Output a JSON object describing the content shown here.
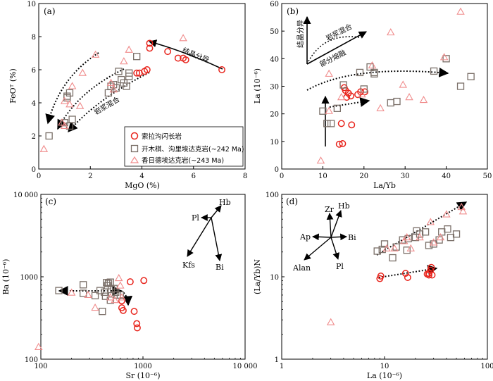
{
  "chart_data": [
    {
      "type": "scatter",
      "panel": "(a)",
      "xlabel": "MgO (%)",
      "ylabel": "FeOᵀ (%)",
      "xscale": "linear",
      "yscale": "linear",
      "xlim": [
        0,
        8
      ],
      "ylim": [
        0,
        10
      ],
      "xticks": [
        0,
        2,
        4,
        6,
        8
      ],
      "yticks": [
        0,
        2,
        4,
        6,
        8,
        10
      ],
      "series": [
        {
          "name": "索拉沟闪长岩",
          "marker": "circle",
          "color": "#e8241c",
          "points": [
            [
              4.3,
              7.6
            ],
            [
              4.3,
              7.3
            ],
            [
              5.0,
              7.1
            ],
            [
              5.4,
              6.7
            ],
            [
              5.6,
              6.7
            ],
            [
              5.7,
              6.6
            ],
            [
              7.1,
              6.0
            ],
            [
              3.8,
              5.8
            ],
            [
              3.9,
              5.8
            ],
            [
              4.1,
              5.9
            ],
            [
              4.2,
              6.0
            ]
          ]
        },
        {
          "name": "开木棋、沟里埃达克岩(~242 Ma)",
          "marker": "square",
          "color": "#7a6f68",
          "points": [
            [
              0.4,
              2.0
            ],
            [
              1.0,
              2.8
            ],
            [
              1.1,
              4.4
            ],
            [
              1.2,
              4.6
            ],
            [
              1.3,
              3.0
            ],
            [
              1.2,
              2.6
            ],
            [
              2.7,
              4.6
            ],
            [
              2.8,
              5.0
            ],
            [
              2.9,
              5.1
            ],
            [
              3.1,
              5.9
            ],
            [
              3.2,
              5.4
            ],
            [
              3.3,
              5.2
            ],
            [
              3.4,
              5.0
            ],
            [
              3.5,
              5.6
            ],
            [
              3.5,
              5.8
            ],
            [
              3.8,
              6.8
            ],
            [
              3.0,
              4.9
            ],
            [
              1.1,
              4.3
            ]
          ]
        },
        {
          "name": "香日德埃达克岩(~243 Ma)",
          "marker": "triangle",
          "color": "#f08c8c",
          "points": [
            [
              0.2,
              1.2
            ],
            [
              0.9,
              2.8
            ],
            [
              1.0,
              2.6
            ],
            [
              1.2,
              3.9
            ],
            [
              1.3,
              5.0
            ],
            [
              1.6,
              3.8
            ],
            [
              1.7,
              5.8
            ],
            [
              2.2,
              6.9
            ],
            [
              2.8,
              5.2
            ],
            [
              3.3,
              6.5
            ],
            [
              3.5,
              7.2
            ],
            [
              5.6,
              7.9
            ],
            [
              1.0,
              4.1
            ],
            [
              2.9,
              4.8
            ]
          ]
        }
      ],
      "annotations": [
        "结晶分异",
        "岩浆混合"
      ]
    },
    {
      "type": "scatter",
      "panel": "(b)",
      "xlabel": "La/Yb",
      "ylabel": "La (10⁻⁶)",
      "xscale": "linear",
      "yscale": "linear",
      "xlim": [
        0,
        50
      ],
      "ylim": [
        0,
        60
      ],
      "xticks": [
        0,
        10,
        20,
        30,
        40,
        50
      ],
      "yticks": [
        0,
        10,
        20,
        30,
        40,
        50,
        60
      ],
      "series": [
        {
          "name": "索拉沟闪长岩",
          "marker": "circle",
          "color": "#e8241c",
          "points": [
            [
              14.0,
              9.0
            ],
            [
              14.8,
              9.2
            ],
            [
              14.5,
              16.5
            ],
            [
              15.5,
              28.5
            ],
            [
              15.8,
              26.0
            ],
            [
              16.2,
              27.5
            ],
            [
              16.8,
              26.5
            ],
            [
              17.0,
              16.0
            ],
            [
              18.5,
              27.0
            ],
            [
              19.2,
              28.0
            ],
            [
              20.2,
              28.0
            ],
            [
              15.2,
              29.5
            ]
          ]
        },
        {
          "name": "开木棋、沟里埃达克岩(~242 Ma)",
          "marker": "square",
          "color": "#7a6f68",
          "points": [
            [
              10.0,
              21.0
            ],
            [
              11.0,
              16.5
            ],
            [
              12.0,
              16.5
            ],
            [
              13.5,
              22.0
            ],
            [
              15.0,
              30.5
            ],
            [
              19.0,
              35.0
            ],
            [
              21.5,
              37.0
            ],
            [
              22.5,
              35.0
            ],
            [
              22.5,
              34.5
            ],
            [
              26.5,
              24.0
            ],
            [
              28.0,
              24.5
            ],
            [
              37.0,
              35.5
            ],
            [
              40.0,
              40.0
            ],
            [
              43.5,
              30.0
            ],
            [
              46.0,
              33.5
            ],
            [
              20.0,
              29.0
            ]
          ]
        },
        {
          "name": "香日德埃达克岩(~243 Ma)",
          "marker": "triangle",
          "color": "#f08c8c",
          "points": [
            [
              9.5,
              3.0
            ],
            [
              11.5,
              34.5
            ],
            [
              11.5,
              21.0
            ],
            [
              14.5,
              26.0
            ],
            [
              19.5,
              27.0
            ],
            [
              22.0,
              37.5
            ],
            [
              24.0,
              22.0
            ],
            [
              26.5,
              49.5
            ],
            [
              29.5,
              30.5
            ],
            [
              31.0,
              26.0
            ],
            [
              34.5,
              25.0
            ],
            [
              39.5,
              40.5
            ],
            [
              43.5,
              57.0
            ]
          ]
        }
      ],
      "annotations": [
        "结晶分异",
        "岩浆混合",
        "部分熔融"
      ]
    },
    {
      "type": "scatter",
      "panel": "(c)",
      "xlabel": "Sr (10⁻⁶)",
      "ylabel": "Ba (10⁻⁶)",
      "xscale": "log",
      "yscale": "log",
      "xlim": [
        100,
        10000
      ],
      "ylim": [
        100,
        10000
      ],
      "xticks": [
        100,
        1000,
        10000
      ],
      "yticks": [
        100,
        1000,
        10000
      ],
      "series": [
        {
          "name": "索拉沟闪长岩",
          "marker": "circle",
          "color": "#e8241c",
          "points": [
            [
              750,
              870
            ],
            [
              1020,
              900
            ],
            [
              640,
              390
            ],
            [
              620,
              420
            ],
            [
              820,
              380
            ],
            [
              620,
              510
            ],
            [
              870,
              270
            ],
            [
              880,
              240
            ]
          ]
        },
        {
          "name": "开木棋、沟里埃达克岩(~242 Ma)",
          "marker": "square",
          "color": "#7a6f68",
          "points": [
            [
              150,
              680
            ],
            [
              260,
              800
            ],
            [
              260,
              630
            ],
            [
              340,
              590
            ],
            [
              380,
              680
            ],
            [
              420,
              650
            ],
            [
              430,
              580
            ],
            [
              440,
              850
            ],
            [
              450,
              780
            ],
            [
              460,
              830
            ],
            [
              480,
              860
            ],
            [
              490,
              700
            ],
            [
              520,
              720
            ],
            [
              540,
              650
            ],
            [
              600,
              600
            ],
            [
              400,
              380
            ],
            [
              480,
              520
            ],
            [
              560,
              600
            ]
          ]
        },
        {
          "name": "香日德埃达克岩(~243 Ma)",
          "marker": "triangle",
          "color": "#f08c8c",
          "points": [
            [
              95,
              140
            ],
            [
              200,
              640
            ],
            [
              290,
              600
            ],
            [
              340,
              420
            ],
            [
              480,
              560
            ],
            [
              530,
              520
            ],
            [
              580,
              960
            ],
            [
              600,
              780
            ],
            [
              620,
              560
            ]
          ]
        }
      ],
      "vectors": [
        "Hb",
        "Pl",
        "Kfs",
        "Bi"
      ]
    },
    {
      "type": "scatter",
      "panel": "(d)",
      "xlabel": "La (10⁻⁶)",
      "ylabel": "(La/Yb)N",
      "xscale": "log",
      "yscale": "log",
      "xlim": [
        1,
        100
      ],
      "ylim": [
        1,
        100
      ],
      "xticks": [
        1,
        10,
        100
      ],
      "yticks": [
        1,
        10,
        100
      ],
      "series": [
        {
          "name": "索拉沟闪长岩",
          "marker": "circle",
          "color": "#e8241c",
          "points": [
            [
              9.0,
              9.5
            ],
            [
              9.2,
              10.2
            ],
            [
              16.0,
              11.0
            ],
            [
              16.8,
              9.8
            ],
            [
              26.0,
              10.8
            ],
            [
              27.0,
              11.0
            ],
            [
              28.0,
              12.0
            ],
            [
              28.5,
              13.0
            ],
            [
              29.0,
              10.5
            ],
            [
              27.0,
              10.5
            ]
          ]
        },
        {
          "name": "开木棋、沟里埃达克岩(~242 Ma)",
          "marker": "square",
          "color": "#7a6f68",
          "points": [
            [
              8.5,
              20.5
            ],
            [
              9.5,
              21.5
            ],
            [
              10.0,
              25.0
            ],
            [
              12.0,
              17.0
            ],
            [
              13.0,
              23.0
            ],
            [
              15.0,
              28.0
            ],
            [
              17.0,
              29.0
            ],
            [
              20.0,
              30.0
            ],
            [
              22.0,
              33.0
            ],
            [
              25.0,
              35.0
            ],
            [
              27.0,
              24.0
            ],
            [
              30.0,
              25.0
            ],
            [
              34.0,
              28.0
            ],
            [
              36.0,
              35.0
            ],
            [
              41.0,
              38.0
            ],
            [
              44.0,
              30.0
            ],
            [
              50.0,
              33.0
            ],
            [
              16.5,
              21.0
            ],
            [
              20.5,
              36.0
            ]
          ]
        },
        {
          "name": "香日德埃达克岩(~243 Ma)",
          "marker": "triangle",
          "color": "#f08c8c",
          "points": [
            [
              12.5,
              22.0
            ],
            [
              15.5,
              27.0
            ],
            [
              18.0,
              22.0
            ],
            [
              22.0,
              30.0
            ],
            [
              28.0,
              46.0
            ],
            [
              30.0,
              26.0
            ],
            [
              35.0,
              30.0
            ],
            [
              40.0,
              57.0
            ],
            [
              56.0,
              70.0
            ],
            [
              58.0,
              62.0
            ],
            [
              3.0,
              2.8
            ],
            [
              10.5,
              22.0
            ],
            [
              16.5,
              30.0
            ]
          ]
        }
      ],
      "vectors": [
        "Zr",
        "Hb",
        "Ap",
        "Bi",
        "Alan",
        "Pl"
      ]
    }
  ]
}
